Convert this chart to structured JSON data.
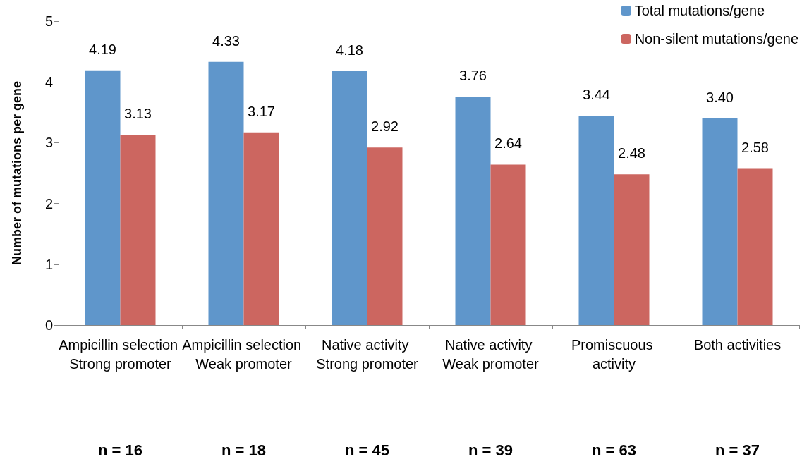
{
  "chart_data": {
    "type": "bar",
    "ylabel": "Number of mutations per gene",
    "categories": [
      "Ampicillin selection Strong promoter",
      "Ampicillin selection Weak promoter",
      "Native activity Strong promoter",
      "Native activity Weak promoter",
      "Promiscuous activity",
      "Both activities"
    ],
    "series": [
      {
        "name": "Total mutations/gene",
        "color": "#5f96cb",
        "values": [
          4.19,
          4.33,
          4.18,
          3.76,
          3.44,
          3.4
        ],
        "value_labels": [
          "4.19",
          "4.33",
          "4.18",
          "3.76",
          "3.44",
          "3.40"
        ]
      },
      {
        "name": "Non-silent mutations/gene",
        "color": "#cc6660",
        "values": [
          3.13,
          3.17,
          2.92,
          2.64,
          2.48,
          2.58
        ],
        "value_labels": [
          "3.13",
          "3.17",
          "2.92",
          "2.64",
          "2.48",
          "2.58"
        ]
      }
    ],
    "ylim": [
      0,
      5
    ],
    "yticks": [
      0,
      1,
      2,
      3,
      4,
      5
    ],
    "grid": false,
    "legend": "top right",
    "annotations": [
      "n = 16",
      "n = 18",
      "n = 45",
      "n = 39",
      "n = 63",
      "n = 37"
    ]
  }
}
